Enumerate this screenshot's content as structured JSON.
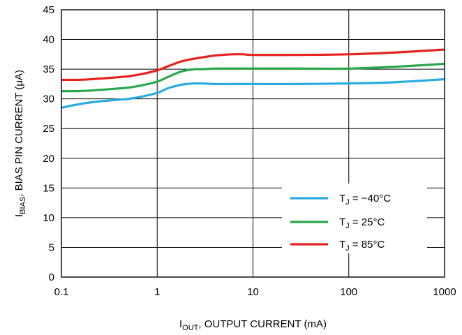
{
  "chart_data": {
    "type": "line",
    "title": "",
    "xlabel": {
      "main": "I",
      "sub": "OUT",
      "rest": ", OUTPUT CURRENT (mA)"
    },
    "ylabel": {
      "main": "I",
      "sub": "BIAS",
      "rest": ", BIAS PIN CURRENT (μA)"
    },
    "xscale": "log",
    "xlim": [
      0.1,
      1000
    ],
    "ylim": [
      0,
      45
    ],
    "xticks": [
      0.1,
      1,
      10,
      100,
      1000
    ],
    "xtick_labels": [
      "0.1",
      "1",
      "10",
      "100",
      "1000"
    ],
    "yticks": [
      0,
      5,
      10,
      15,
      20,
      25,
      30,
      35,
      40,
      45
    ],
    "ytick_labels": [
      "0",
      "5",
      "10",
      "15",
      "20",
      "25",
      "30",
      "35",
      "40",
      "45"
    ],
    "grid": true,
    "legend_position": "lower-right",
    "series": [
      {
        "legend_main": "T",
        "legend_sub": "J",
        "legend_rest": " = −40°C",
        "color": "#29abe2",
        "x": [
          0.1,
          0.13,
          0.2,
          0.3,
          0.5,
          0.7,
          1.0,
          1.3,
          1.7,
          2.0,
          2.5,
          3.0,
          4,
          6,
          10,
          30,
          100,
          300,
          1000
        ],
        "y": [
          28.5,
          28.9,
          29.4,
          29.7,
          30.0,
          30.4,
          31.0,
          31.8,
          32.3,
          32.5,
          32.6,
          32.6,
          32.5,
          32.5,
          32.5,
          32.5,
          32.6,
          32.8,
          33.3
        ]
      },
      {
        "legend_main": "T",
        "legend_sub": "J",
        "legend_rest": " = 25°C",
        "color": "#2aa84a",
        "x": [
          0.1,
          0.15,
          0.2,
          0.3,
          0.5,
          0.7,
          1.0,
          1.3,
          1.7,
          2.0,
          2.5,
          3.0,
          4,
          6,
          10,
          30,
          100,
          300,
          1000
        ],
        "y": [
          31.3,
          31.3,
          31.4,
          31.6,
          31.9,
          32.3,
          32.9,
          33.7,
          34.5,
          34.8,
          35.0,
          35.0,
          35.1,
          35.1,
          35.1,
          35.1,
          35.1,
          35.4,
          35.9
        ]
      },
      {
        "legend_main": "T",
        "legend_sub": "J",
        "legend_rest": " = 85°C",
        "color": "#e8201e",
        "x": [
          0.1,
          0.15,
          0.2,
          0.3,
          0.5,
          0.7,
          1.0,
          1.3,
          1.7,
          2.0,
          2.5,
          3.0,
          4,
          6,
          8,
          10,
          30,
          100,
          300,
          1000
        ],
        "y": [
          33.2,
          33.2,
          33.3,
          33.5,
          33.8,
          34.2,
          34.8,
          35.5,
          36.2,
          36.5,
          36.8,
          37.0,
          37.3,
          37.5,
          37.5,
          37.4,
          37.4,
          37.5,
          37.8,
          38.3
        ]
      }
    ]
  }
}
